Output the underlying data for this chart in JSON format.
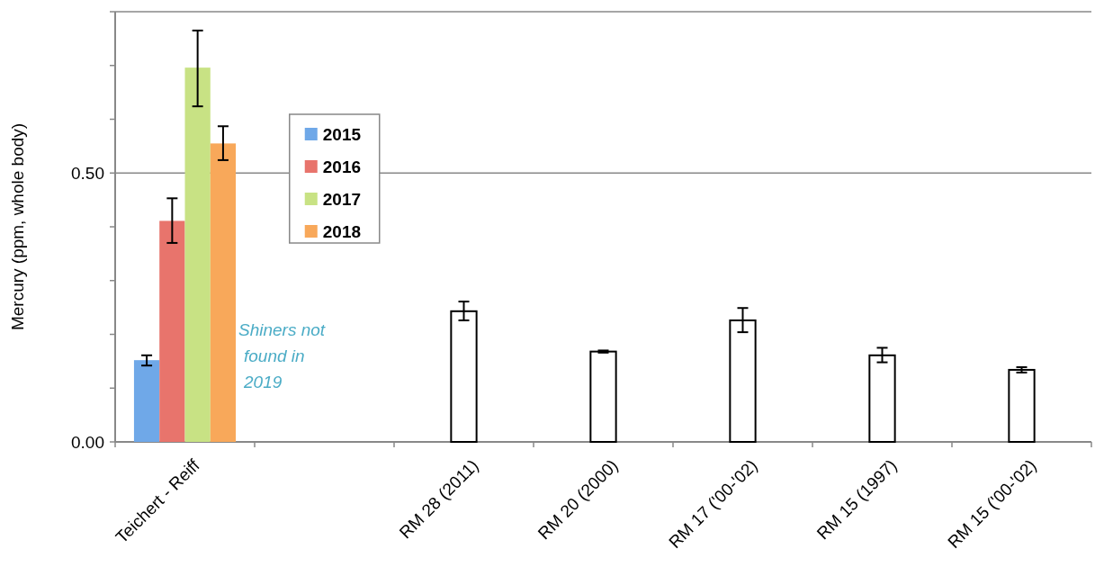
{
  "chart_data": {
    "type": "bar",
    "ylabel": "Mercury (ppm, whole body)",
    "categories": [
      "Teichert - Reiff",
      null,
      "RM 28 (2011)",
      "RM 20 (2000)",
      "RM 17 ('00-'02)",
      "RM 15 (1997)",
      "RM 15 ('00-'02)"
    ],
    "series": [
      {
        "name": "2015",
        "color": "#6fa8e8",
        "values": [
          0.152,
          null,
          null,
          null,
          null,
          null,
          null
        ],
        "errors": [
          [
            0.142,
            0.161
          ],
          null,
          null,
          null,
          null,
          null,
          null
        ]
      },
      {
        "name": "2016",
        "color": "#e8746c",
        "values": [
          0.411,
          null,
          null,
          null,
          null,
          null,
          null
        ],
        "errors": [
          [
            0.37,
            0.453
          ],
          null,
          null,
          null,
          null,
          null,
          null
        ]
      },
      {
        "name": "2017",
        "color": "#c8e284",
        "values": [
          0.696,
          null,
          null,
          null,
          null,
          null,
          null
        ],
        "errors": [
          [
            0.624,
            0.765
          ],
          null,
          null,
          null,
          null,
          null,
          null
        ]
      },
      {
        "name": "2018",
        "color": "#f8a85a",
        "values": [
          0.555,
          null,
          null,
          null,
          null,
          null,
          null
        ],
        "errors": [
          [
            0.524,
            0.587
          ],
          null,
          null,
          null,
          null,
          null,
          null
        ]
      },
      {
        "color": "#ffffff",
        "values": [
          null,
          null,
          0.243,
          0.168,
          0.226,
          0.161,
          0.134
        ],
        "errors": [
          null,
          null,
          [
            0.226,
            0.261
          ],
          [
            0.166,
            0.17
          ],
          [
            0.204,
            0.249
          ],
          [
            0.148,
            0.175
          ],
          [
            0.129,
            0.139
          ]
        ]
      }
    ],
    "ylim": [
      0,
      0.8
    ],
    "yticks": [
      {
        "value": 0,
        "label": "0.00"
      },
      {
        "value": 0.1,
        "label": null
      },
      {
        "value": 0.2,
        "label": null
      },
      {
        "value": 0.3,
        "label": null
      },
      {
        "value": 0.4,
        "label": null
      },
      {
        "value": 0.5,
        "label": "0.50"
      },
      {
        "value": 0.6,
        "label": null
      },
      {
        "value": 0.7,
        "label": null
      },
      {
        "value": 0.8,
        "label": null
      }
    ],
    "grid": "y",
    "legend": "top left",
    "annotations": [
      "Shiners not found in 2019"
    ]
  }
}
